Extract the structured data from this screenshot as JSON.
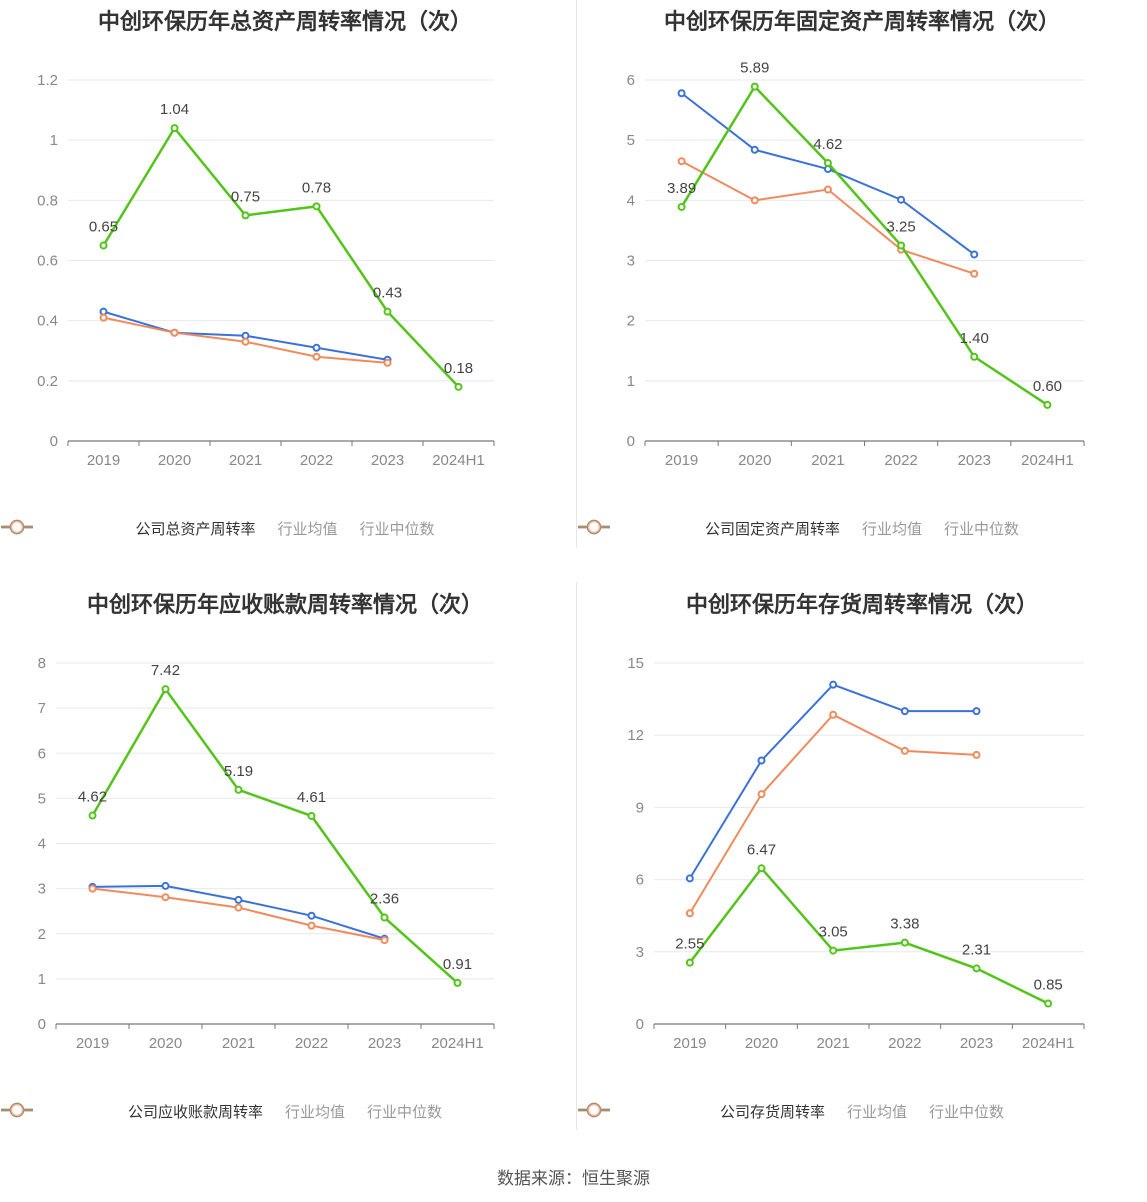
{
  "colors": {
    "company": "#52c41a",
    "avg": "#3a72d8",
    "median": "#f08a5d"
  },
  "source": "数据来源：恒生聚源",
  "chart_data": [
    {
      "type": "line",
      "title": "中创环保历年总资产周转率情况（次）",
      "categories": [
        "2019",
        "2020",
        "2021",
        "2022",
        "2023",
        "2024H1"
      ],
      "ylim": [
        0,
        1.2
      ],
      "yticks": [
        "0",
        "0.2",
        "0.4",
        "0.6",
        "0.8",
        "1",
        "1.2"
      ],
      "series": [
        {
          "name": "公司总资产周转率",
          "values": [
            0.65,
            1.04,
            0.75,
            0.78,
            0.43,
            0.18
          ],
          "labels": [
            "0.65",
            "1.04",
            "0.75",
            "0.78",
            "0.43",
            "0.18"
          ]
        },
        {
          "name": "行业均值",
          "values": [
            0.43,
            0.36,
            0.35,
            0.31,
            0.27,
            null
          ]
        },
        {
          "name": "行业中位数",
          "values": [
            0.41,
            0.36,
            0.33,
            0.28,
            0.26,
            null
          ]
        }
      ]
    },
    {
      "type": "line",
      "title": "中创环保历年固定资产周转率情况（次）",
      "categories": [
        "2019",
        "2020",
        "2021",
        "2022",
        "2023",
        "2024H1"
      ],
      "ylim": [
        0,
        6
      ],
      "yticks": [
        "0",
        "1",
        "2",
        "3",
        "4",
        "5",
        "6"
      ],
      "series": [
        {
          "name": "公司固定资产周转率",
          "values": [
            3.89,
            5.89,
            4.62,
            3.25,
            1.4,
            0.6
          ],
          "labels": [
            "3.89",
            "5.89",
            "4.62",
            "3.25",
            "1.40",
            "0.60"
          ]
        },
        {
          "name": "行业均值",
          "values": [
            5.78,
            4.84,
            4.52,
            4.01,
            3.1,
            null
          ]
        },
        {
          "name": "行业中位数",
          "values": [
            4.65,
            4.0,
            4.18,
            3.18,
            2.78,
            null
          ]
        }
      ]
    },
    {
      "type": "line",
      "title": "中创环保历年应收账款周转率情况（次）",
      "categories": [
        "2019",
        "2020",
        "2021",
        "2022",
        "2023",
        "2024H1"
      ],
      "ylim": [
        0,
        8
      ],
      "yticks": [
        "0",
        "1",
        "2",
        "3",
        "4",
        "5",
        "6",
        "7",
        "8"
      ],
      "series": [
        {
          "name": "公司应收账款周转率",
          "values": [
            4.62,
            7.42,
            5.19,
            4.61,
            2.36,
            0.91
          ],
          "labels": [
            "4.62",
            "7.42",
            "5.19",
            "4.61",
            "2.36",
            "0.91"
          ]
        },
        {
          "name": "行业均值",
          "values": [
            3.04,
            3.06,
            2.75,
            2.4,
            1.89,
            null
          ]
        },
        {
          "name": "行业中位数",
          "values": [
            3.0,
            2.81,
            2.58,
            2.18,
            1.86,
            null
          ]
        }
      ]
    },
    {
      "type": "line",
      "title": "中创环保历年存货周转率情况（次）",
      "categories": [
        "2019",
        "2020",
        "2021",
        "2022",
        "2023",
        "2024H1"
      ],
      "ylim": [
        0,
        15
      ],
      "yticks": [
        "0",
        "3",
        "6",
        "9",
        "12",
        "15"
      ],
      "series": [
        {
          "name": "公司存货周转率",
          "values": [
            2.55,
            6.47,
            3.05,
            3.38,
            2.31,
            0.85
          ],
          "labels": [
            "2.55",
            "6.47",
            "3.05",
            "3.38",
            "2.31",
            "0.85"
          ]
        },
        {
          "name": "行业均值",
          "values": [
            6.05,
            10.95,
            14.1,
            13.0,
            13.0,
            null
          ]
        },
        {
          "name": "行业中位数",
          "values": [
            4.6,
            9.55,
            12.85,
            11.35,
            11.18,
            null
          ]
        }
      ]
    }
  ]
}
